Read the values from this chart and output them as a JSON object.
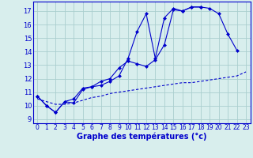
{
  "title": "Graphe des températures (°c)",
  "bg_color": "#d8eeed",
  "grid_color": "#aacece",
  "line_color": "#0000cc",
  "xlim": [
    -0.5,
    23.5
  ],
  "ylim": [
    8.7,
    17.7
  ],
  "yticks": [
    9,
    10,
    11,
    12,
    13,
    14,
    15,
    16,
    17
  ],
  "xticks": [
    0,
    1,
    2,
    3,
    4,
    5,
    6,
    7,
    8,
    9,
    10,
    11,
    12,
    13,
    14,
    15,
    16,
    17,
    18,
    19,
    20,
    21,
    22,
    23
  ],
  "line1_x": [
    0,
    1,
    2,
    3,
    4,
    5,
    6,
    7,
    8,
    9,
    10,
    11,
    12,
    13,
    14,
    15,
    16,
    17,
    18,
    19,
    20,
    21,
    22
  ],
  "line1_y": [
    10.7,
    10.0,
    9.5,
    10.3,
    10.2,
    11.2,
    11.4,
    11.5,
    11.8,
    12.2,
    13.5,
    15.5,
    16.8,
    13.5,
    16.5,
    17.2,
    17.0,
    17.3,
    17.3,
    17.2,
    16.8,
    15.3,
    14.1
  ],
  "line2_x": [
    0,
    1,
    2,
    3,
    4,
    5,
    6,
    7,
    8,
    9,
    10,
    11,
    12,
    13,
    14,
    15,
    16,
    17,
    18
  ],
  "line2_y": [
    10.7,
    10.0,
    9.5,
    10.3,
    10.5,
    11.3,
    11.4,
    11.8,
    12.0,
    12.8,
    13.3,
    13.1,
    12.9,
    13.4,
    14.5,
    17.1,
    17.0,
    17.3,
    17.3
  ],
  "line3_x": [
    0,
    1,
    2,
    3,
    4,
    5,
    6,
    7,
    8,
    9,
    10,
    11,
    12,
    13,
    14,
    15,
    16,
    17,
    18,
    19,
    20,
    21,
    22,
    23
  ],
  "line3_y": [
    10.5,
    10.3,
    10.1,
    10.1,
    10.2,
    10.4,
    10.6,
    10.7,
    10.9,
    11.0,
    11.1,
    11.2,
    11.3,
    11.4,
    11.5,
    11.6,
    11.7,
    11.7,
    11.8,
    11.9,
    12.0,
    12.1,
    12.2,
    12.5
  ]
}
